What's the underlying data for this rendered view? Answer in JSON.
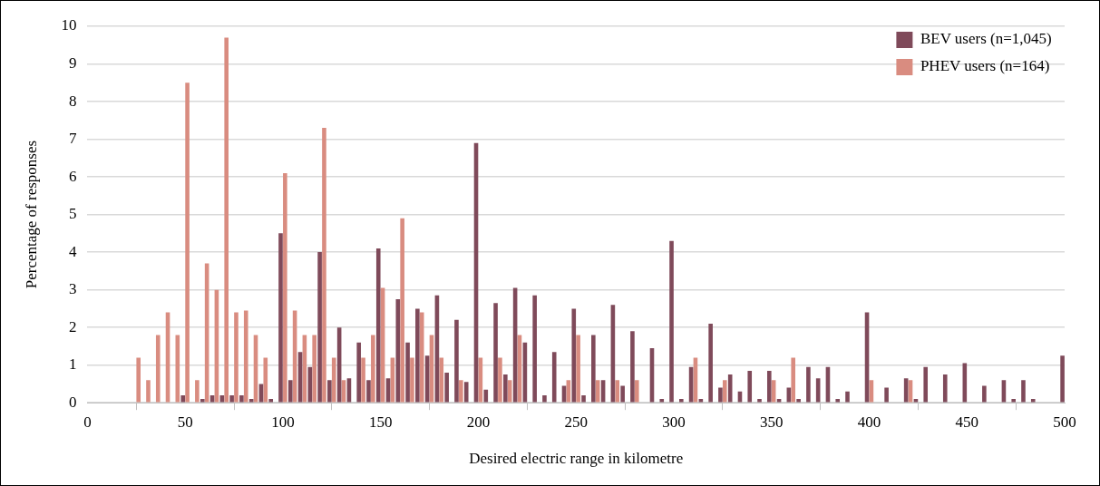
{
  "chart_data": {
    "type": "bar",
    "xlabel": "Desired electric range in kilometre",
    "ylabel": "Percentage of responses",
    "x": [
      25,
      30,
      35,
      40,
      45,
      50,
      55,
      60,
      65,
      70,
      75,
      80,
      85,
      90,
      95,
      100,
      105,
      110,
      115,
      120,
      125,
      130,
      135,
      140,
      145,
      150,
      155,
      160,
      165,
      170,
      175,
      180,
      185,
      190,
      195,
      200,
      205,
      210,
      215,
      220,
      225,
      230,
      235,
      240,
      245,
      250,
      255,
      260,
      265,
      270,
      275,
      280,
      285,
      290,
      295,
      300,
      305,
      310,
      315,
      320,
      325,
      330,
      335,
      340,
      345,
      350,
      355,
      360,
      365,
      370,
      375,
      380,
      385,
      390,
      395,
      400,
      405,
      410,
      415,
      420,
      425,
      430,
      435,
      440,
      445,
      450,
      455,
      460,
      465,
      470,
      475,
      480,
      485,
      490,
      495,
      500
    ],
    "series": [
      {
        "name": "BEV users (n=1,045)",
        "color": "#7f4a5a",
        "values": [
          null,
          null,
          null,
          null,
          null,
          0.2,
          null,
          0.1,
          0.2,
          0.2,
          0.2,
          0.2,
          0.1,
          0.5,
          0.1,
          4.5,
          0.6,
          1.35,
          0.95,
          4.0,
          0.6,
          2.0,
          0.65,
          1.6,
          0.6,
          4.1,
          0.65,
          2.75,
          1.6,
          2.5,
          1.25,
          2.85,
          0.8,
          2.2,
          0.55,
          6.9,
          0.35,
          2.65,
          0.75,
          3.05,
          1.6,
          2.85,
          0.2,
          1.35,
          0.45,
          2.5,
          0.2,
          1.8,
          0.6,
          2.6,
          0.45,
          1.9,
          null,
          1.45,
          0.1,
          4.3,
          0.1,
          0.95,
          0.1,
          2.1,
          0.4,
          0.75,
          0.3,
          0.85,
          0.1,
          0.85,
          0.1,
          0.4,
          0.1,
          0.95,
          0.65,
          0.95,
          0.1,
          0.3,
          null,
          2.4,
          null,
          0.4,
          null,
          0.65,
          0.1,
          0.95,
          null,
          0.75,
          null,
          1.05,
          null,
          0.45,
          null,
          0.6,
          0.1,
          0.6,
          0.1,
          null,
          null,
          1.25
        ]
      },
      {
        "name": "PHEV users (n=164)",
        "color": "#d98c80",
        "values": [
          1.2,
          0.6,
          1.8,
          2.4,
          1.8,
          8.5,
          0.6,
          3.7,
          3.0,
          9.7,
          2.4,
          2.45,
          1.8,
          1.2,
          null,
          6.1,
          2.45,
          1.8,
          1.8,
          7.3,
          1.2,
          0.6,
          null,
          1.2,
          1.8,
          3.05,
          1.2,
          4.9,
          1.2,
          2.4,
          1.8,
          1.2,
          null,
          0.6,
          null,
          1.2,
          null,
          1.2,
          0.6,
          1.8,
          null,
          null,
          null,
          null,
          0.6,
          1.8,
          null,
          0.6,
          null,
          0.6,
          null,
          0.6,
          null,
          null,
          null,
          null,
          null,
          1.2,
          null,
          null,
          0.6,
          null,
          null,
          null,
          null,
          0.6,
          null,
          1.2,
          null,
          null,
          null,
          null,
          null,
          null,
          null,
          0.6,
          null,
          null,
          null,
          0.6,
          null,
          null,
          null,
          null,
          null,
          null,
          null,
          null,
          null,
          null,
          null,
          null,
          null,
          null,
          null,
          null
        ]
      }
    ],
    "xlim": [
      0,
      500
    ],
    "xticks": [
      0,
      50,
      100,
      150,
      200,
      250,
      300,
      350,
      400,
      450,
      500
    ],
    "ylim": [
      0,
      10
    ],
    "yticks": [
      0,
      1,
      2,
      3,
      4,
      5,
      6,
      7,
      8,
      9,
      10
    ],
    "grid": "y",
    "legend": "top right"
  }
}
